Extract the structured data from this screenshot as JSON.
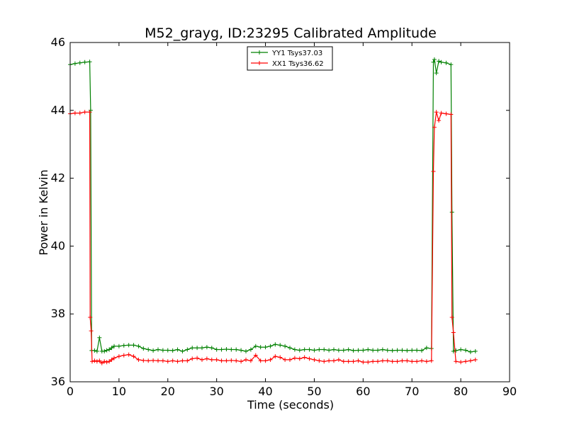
{
  "chart_data": {
    "type": "line",
    "title": "M52_grayg, ID:23295 Calibrated Amplitude",
    "xlabel": "Time (seconds)",
    "ylabel": "Power in Kelvin",
    "xlim": [
      0,
      90
    ],
    "ylim": [
      36,
      46
    ],
    "xticks": [
      "0",
      "10",
      "20",
      "30",
      "40",
      "50",
      "60",
      "70",
      "80",
      "90"
    ],
    "yticks": [
      "36",
      "38",
      "40",
      "42",
      "44",
      "46"
    ],
    "grid": false,
    "legend_position": "top-center",
    "marker": "+",
    "series": [
      {
        "name": "YY1 Tsys37.03",
        "color": "#008000",
        "x": [
          0,
          1,
          2,
          3,
          4,
          4.2,
          4.4,
          5,
          5.5,
          6,
          6.5,
          7,
          7.5,
          8,
          8.5,
          9,
          10,
          11,
          12,
          13,
          14,
          15,
          16,
          17,
          18,
          19,
          20,
          21,
          22,
          23,
          24,
          25,
          26,
          27,
          28,
          29,
          30,
          31,
          32,
          33,
          34,
          35,
          36,
          37,
          38,
          39,
          40,
          41,
          42,
          43,
          44,
          45,
          46,
          47,
          48,
          49,
          50,
          51,
          52,
          53,
          54,
          55,
          56,
          57,
          58,
          59,
          60,
          61,
          62,
          63,
          64,
          65,
          66,
          67,
          68,
          69,
          70,
          71,
          72,
          73,
          74,
          74.4,
          74.6,
          75,
          75.5,
          76,
          77,
          78,
          78.2,
          78.5,
          79,
          80,
          81,
          82,
          83
        ],
        "y": [
          45.35,
          45.38,
          45.4,
          45.42,
          45.43,
          44.0,
          36.92,
          36.92,
          36.9,
          37.3,
          36.9,
          36.9,
          36.93,
          36.95,
          37.0,
          37.05,
          37.05,
          37.07,
          37.08,
          37.08,
          37.05,
          36.98,
          36.95,
          36.92,
          36.95,
          36.93,
          36.93,
          36.92,
          36.95,
          36.9,
          36.95,
          37.0,
          37.0,
          37.0,
          37.02,
          37.0,
          36.95,
          36.95,
          36.96,
          36.95,
          36.95,
          36.93,
          36.9,
          36.95,
          37.05,
          37.02,
          37.02,
          37.05,
          37.1,
          37.08,
          37.05,
          37.0,
          36.95,
          36.93,
          36.95,
          36.95,
          36.93,
          36.95,
          36.95,
          36.93,
          36.95,
          36.93,
          36.93,
          36.95,
          36.92,
          36.93,
          36.93,
          36.95,
          36.93,
          36.93,
          36.95,
          36.93,
          36.92,
          36.93,
          36.93,
          36.92,
          36.93,
          36.93,
          36.92,
          37.0,
          36.98,
          45.42,
          45.5,
          45.1,
          45.45,
          45.42,
          45.4,
          45.35,
          41.0,
          36.9,
          36.92,
          36.95,
          36.93,
          36.88,
          36.9
        ]
      },
      {
        "name": "XX1 Tsys36.62",
        "color": "#ff0000",
        "x": [
          0,
          1,
          2,
          3,
          4,
          4.1,
          4.3,
          4.5,
          5,
          5.5,
          6,
          6.5,
          7,
          7.5,
          8,
          8.5,
          9,
          10,
          11,
          12,
          13,
          14,
          15,
          16,
          17,
          18,
          19,
          20,
          21,
          22,
          23,
          24,
          25,
          26,
          27,
          28,
          29,
          30,
          31,
          32,
          33,
          34,
          35,
          36,
          37,
          38,
          39,
          40,
          41,
          42,
          43,
          44,
          45,
          46,
          47,
          48,
          49,
          50,
          51,
          52,
          53,
          54,
          55,
          56,
          57,
          58,
          59,
          60,
          61,
          62,
          63,
          64,
          65,
          66,
          67,
          68,
          69,
          70,
          71,
          72,
          73,
          74,
          74.4,
          74.6,
          75,
          75.5,
          76,
          77,
          78,
          78.2,
          78.5,
          79,
          80,
          81,
          82,
          83
        ],
        "y": [
          43.9,
          43.92,
          43.92,
          43.95,
          43.95,
          37.9,
          37.5,
          36.6,
          36.62,
          36.6,
          36.62,
          36.55,
          36.6,
          36.58,
          36.6,
          36.65,
          36.7,
          36.75,
          36.78,
          36.8,
          36.75,
          36.65,
          36.63,
          36.62,
          36.63,
          36.62,
          36.62,
          36.6,
          36.62,
          36.6,
          36.62,
          36.62,
          36.68,
          36.7,
          36.65,
          36.68,
          36.65,
          36.65,
          36.62,
          36.62,
          36.63,
          36.62,
          36.6,
          36.65,
          36.62,
          36.78,
          36.62,
          36.62,
          36.65,
          36.75,
          36.72,
          36.65,
          36.65,
          36.7,
          36.68,
          36.72,
          36.68,
          36.65,
          36.62,
          36.6,
          36.62,
          36.62,
          36.65,
          36.6,
          36.6,
          36.6,
          36.62,
          36.58,
          36.58,
          36.6,
          36.6,
          36.62,
          36.62,
          36.6,
          36.6,
          36.62,
          36.62,
          36.6,
          36.6,
          36.62,
          36.6,
          36.62,
          42.2,
          43.5,
          43.95,
          43.7,
          43.92,
          43.9,
          43.88,
          37.9,
          37.45,
          36.6,
          36.58,
          36.6,
          36.62,
          36.65
        ]
      }
    ]
  }
}
